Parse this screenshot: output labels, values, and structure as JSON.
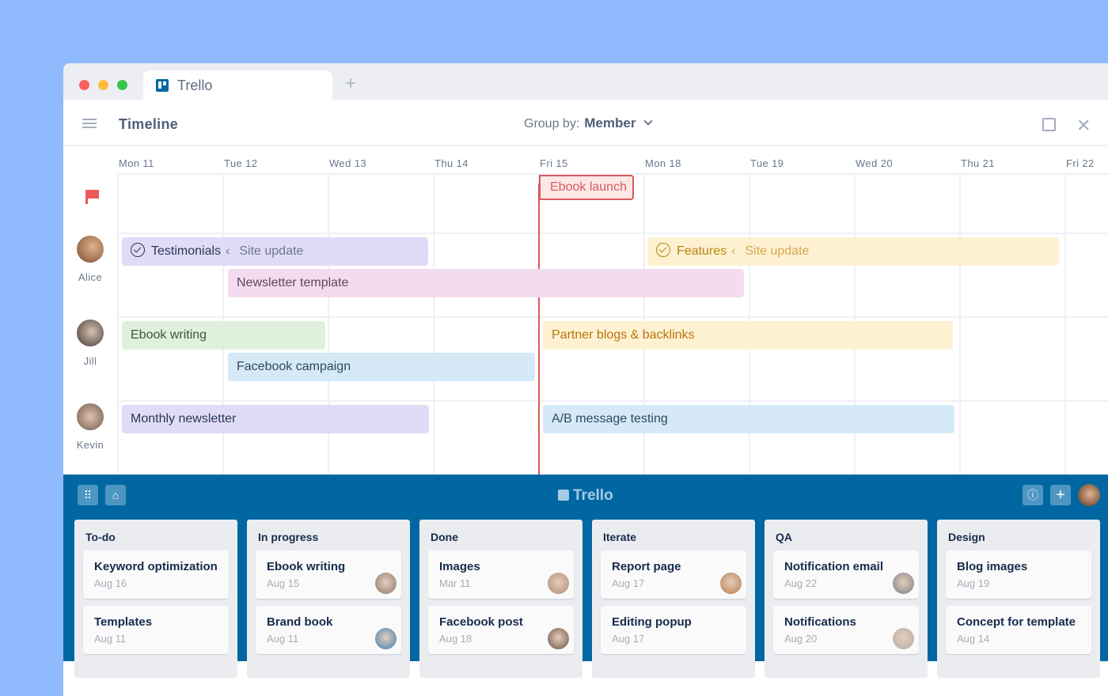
{
  "browser": {
    "tab_title": "Trello",
    "new_tab": "+"
  },
  "header": {
    "title": "Timeline",
    "group_by_label": "Group by:",
    "group_by_value": "Member",
    "close": "✕"
  },
  "timeline": {
    "days": [
      "Mon 11",
      "Tue 12",
      "Wed 13",
      "Thu 14",
      "Fri 15",
      "Mon 18",
      "Tue 19",
      "Wed 20",
      "Thu 21",
      "Fri 22"
    ],
    "milestone": "Ebook launch",
    "members": [
      "Alice",
      "Jill",
      "Kevin"
    ],
    "bars": [
      {
        "label": "Testimonials",
        "parent": "Site update",
        "check": true,
        "bg": "#e2dbf6",
        "fg": "#253858",
        "sub": "#6b778c"
      },
      {
        "label": "Newsletter template",
        "bg": "#f3dcef",
        "fg": "#5e4a5b"
      },
      {
        "label": "Features",
        "parent": "Site update",
        "check": true,
        "bg": "#fdf1d2",
        "fg": "#b8860b",
        "sub": "#d6a84c"
      },
      {
        "label": "Ebook writing",
        "bg": "#dff1dc",
        "fg": "#3b5a36"
      },
      {
        "label": "Facebook campaign",
        "bg": "#d5e9f6",
        "fg": "#2d4a63"
      },
      {
        "label": "Partner blogs & backlinks",
        "bg": "#fdf1d2",
        "fg": "#b8750b"
      },
      {
        "label": "Monthly newsletter",
        "bg": "#e2dbf6",
        "fg": "#253858"
      },
      {
        "label": "A/B message testing",
        "bg": "#d5e9f6",
        "fg": "#2d4a63"
      }
    ]
  },
  "board": {
    "logo": "Trello",
    "lists": [
      {
        "title": "To-do",
        "cards": [
          {
            "title": "Keyword optimization",
            "date": "Aug 16"
          },
          {
            "title": "Templates",
            "date": "Aug 11"
          }
        ]
      },
      {
        "title": "In progress",
        "cards": [
          {
            "title": "Ebook writing",
            "date": "Aug 15",
            "avatar": "#8a7a70"
          },
          {
            "title": "Brand book",
            "date": "Aug 11",
            "avatar": "#3b7fae"
          }
        ]
      },
      {
        "title": "Done",
        "cards": [
          {
            "title": "Images",
            "date": "Mar 11",
            "avatar": "#b08a78"
          },
          {
            "title": "Facebook post",
            "date": "Aug 18",
            "avatar": "#6a5046"
          }
        ]
      },
      {
        "title": "Iterate",
        "cards": [
          {
            "title": "Report page",
            "date": "Aug 17",
            "avatar": "#b7804e"
          },
          {
            "title": "Editing popup",
            "date": "Aug 17"
          }
        ]
      },
      {
        "title": "QA",
        "cards": [
          {
            "title": "Notification email",
            "date": "Aug 22",
            "avatar": "#7b7f86"
          },
          {
            "title": "Notifications",
            "date": "Aug 20",
            "avatar": "#b3aca6"
          }
        ]
      },
      {
        "title": "Design",
        "cards": [
          {
            "title": "Blog images",
            "date": "Aug 19"
          },
          {
            "title": "Concept for template",
            "date": "Aug 14"
          }
        ]
      }
    ]
  }
}
